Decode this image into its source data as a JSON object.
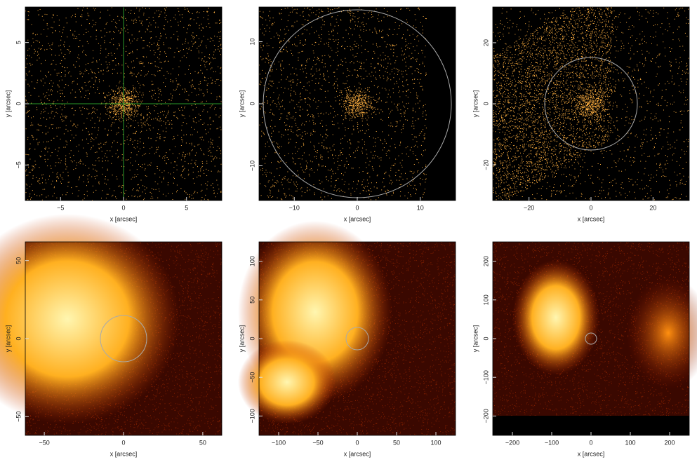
{
  "chart_data": [
    {
      "type": "image",
      "x_label": "x [arcsec]",
      "y_label": "y [arcsec]",
      "xlim": [
        -7.8,
        7.8
      ],
      "ylim": [
        -7.9,
        7.9
      ],
      "xticks": [
        {
          "value": -5,
          "label": "−5"
        },
        0,
        5
      ],
      "yticks": [
        {
          "value": -5,
          "label": "−5"
        },
        0,
        5
      ]
    },
    {
      "type": "image",
      "x_label": "x [arcsec]",
      "y_label": "y [arcsec]",
      "xlim": [
        -15.6,
        15.6
      ],
      "ylim": [
        -15.6,
        15.6
      ],
      "xticks": [
        {
          "value": -10,
          "label": "−10"
        },
        0,
        10
      ],
      "yticks": [
        {
          "value": -10,
          "label": "−10"
        },
        0,
        10
      ]
    },
    {
      "type": "image",
      "x_label": "x [arcsec]",
      "y_label": "y [arcsec]",
      "xlim": [
        -31.7,
        31.7
      ],
      "ylim": [
        -31.7,
        31.7
      ],
      "xticks": [
        {
          "value": -20,
          "label": "−20"
        },
        0,
        20
      ],
      "yticks": [
        {
          "value": -20,
          "label": "−20"
        },
        0,
        20
      ]
    },
    {
      "type": "image",
      "x_label": "x [arcsec]",
      "y_label": "y [arcsec]",
      "xlim": [
        -62,
        62
      ],
      "ylim": [
        -62,
        62
      ],
      "xticks": [
        {
          "value": -50,
          "label": "−50"
        },
        0,
        50
      ],
      "yticks": [
        {
          "value": -50,
          "label": "−50"
        },
        0,
        50
      ]
    },
    {
      "type": "image",
      "x_label": "x [arcsec]",
      "y_label": "y [arcsec]",
      "xlim": [
        -125,
        125
      ],
      "ylim": [
        -125,
        125
      ],
      "xticks": [
        {
          "value": -100,
          "label": "−100"
        },
        {
          "value": -50,
          "label": "−50"
        },
        0,
        50,
        100
      ],
      "yticks": [
        {
          "value": -100,
          "label": "−100"
        },
        {
          "value": -50,
          "label": "−50"
        },
        0,
        50,
        100
      ]
    },
    {
      "type": "image",
      "x_label": "x [arcsec]",
      "y_label": "y [arcsec]",
      "xlim": [
        -250,
        250
      ],
      "ylim": [
        -250,
        250
      ],
      "xticks": [
        {
          "value": -200,
          "label": "−200"
        },
        {
          "value": -100,
          "label": "−100"
        },
        0,
        100,
        200
      ],
      "yticks": [
        {
          "value": -200,
          "label": "−200"
        },
        {
          "value": -100,
          "label": "−100"
        },
        0,
        100,
        200
      ]
    }
  ]
}
